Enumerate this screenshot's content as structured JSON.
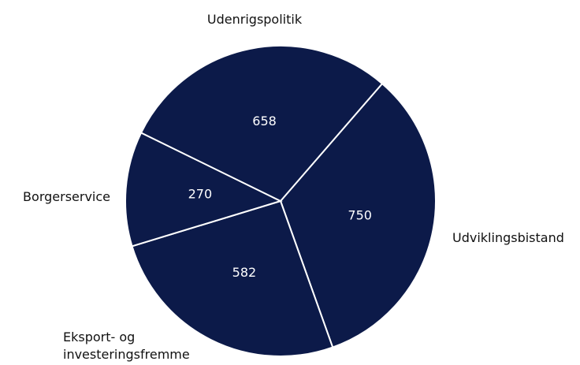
{
  "chart_data": {
    "type": "pie",
    "categories": [
      "Udviklingsbistand",
      "Eksport- og investeringsfremme",
      "Borgerservice",
      "Udenrigspolitik"
    ],
    "values": [
      750,
      582,
      270,
      658
    ],
    "color": "#0c1a49"
  }
}
